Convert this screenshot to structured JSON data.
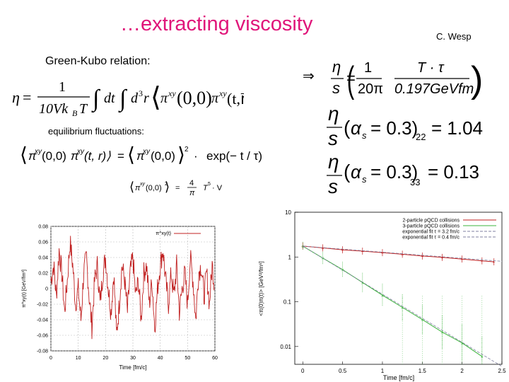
{
  "slide": {
    "title": "…extracting viscosity",
    "author": "C. Wesp",
    "green_kubo_label": "Green-Kubo relation:",
    "equilibrium_label": "equilibrium fluctuations:",
    "colors": {
      "title": "#e0157a",
      "red_series": "#c02020",
      "green_series": "#3cb43c"
    }
  },
  "chart_data": [
    {
      "type": "line",
      "title": "",
      "xlabel": "Time [fm/c]",
      "ylabel": "π^xy(t) [GeV/fm³]",
      "xlim": [
        0,
        60
      ],
      "ylim": [
        -0.08,
        0.08
      ],
      "x_ticks": [
        "0",
        "10",
        "20",
        "30",
        "40",
        "50",
        "60"
      ],
      "y_ticks": [
        "-0.08",
        "-0.06",
        "-0.04",
        "-0.02",
        "0",
        "0.02",
        "0.04",
        "0.06",
        "0.08"
      ],
      "legend": "top-right",
      "series": [
        {
          "name": "π^xy(t)",
          "color": "#c02020",
          "x": [
            0,
            1,
            2,
            3,
            4,
            5,
            6,
            7,
            8,
            9,
            10,
            11,
            12,
            13,
            14,
            15,
            16,
            17,
            18,
            19,
            20,
            21,
            22,
            23,
            24,
            25,
            26,
            27,
            28,
            29,
            30,
            31,
            32,
            33,
            34,
            35,
            36,
            37,
            38,
            39,
            40,
            41,
            42,
            43,
            44,
            45,
            46,
            47,
            48,
            49,
            50,
            51,
            52,
            53,
            54,
            55,
            56,
            57,
            58,
            59,
            60
          ],
          "y": [
            0.01,
            0.03,
            -0.01,
            0.05,
            0.02,
            -0.03,
            0.01,
            0.06,
            0.03,
            -0.02,
            0.0,
            -0.04,
            0.02,
            0.04,
            -0.01,
            -0.05,
            0.01,
            0.03,
            -0.02,
            0.02,
            0.04,
            0.0,
            -0.03,
            0.02,
            -0.06,
            -0.02,
            0.03,
            0.01,
            -0.03,
            0.02,
            0.04,
            -0.01,
            0.01,
            -0.04,
            0.02,
            0.03,
            -0.02,
            0.01,
            -0.05,
            0.0,
            0.03,
            0.05,
            0.01,
            -0.02,
            0.02,
            -0.01,
            0.03,
            -0.03,
            0.0,
            0.02,
            -0.02,
            0.04,
            0.01,
            -0.04,
            0.02,
            0.03,
            -0.01,
            0.02,
            -0.02,
            0.03,
            0.0
          ]
        }
      ]
    },
    {
      "type": "line",
      "title": "",
      "xlabel": "Time [fm/c]",
      "ylabel": "<π(0)π(t)> [GeV²/fm⁶]",
      "xlim": [
        -0.1,
        2.5
      ],
      "ylim": [
        0.004,
        10
      ],
      "yscale": "log",
      "x_ticks": [
        "0",
        "0.5",
        "1",
        "1.5",
        "2",
        "2.5"
      ],
      "y_ticks": [
        "0.01",
        "0.1",
        "1",
        "10"
      ],
      "legend": "top-right",
      "series": [
        {
          "name": "2-particle pQCD collisions",
          "color": "#c02020",
          "x": [
            0,
            0.25,
            0.5,
            0.75,
            1,
            1.25,
            1.5,
            1.75,
            2,
            2.25,
            2.4
          ],
          "y": [
            1.75,
            1.6,
            1.45,
            1.35,
            1.25,
            1.15,
            1.05,
            0.98,
            0.9,
            0.82,
            0.78
          ]
        },
        {
          "name": "3-particle pQCD collisions",
          "color": "#3cb43c",
          "x": [
            0,
            0.25,
            0.5,
            0.75,
            1,
            1.25,
            1.5,
            1.75,
            2,
            2.25
          ],
          "y": [
            1.75,
            0.95,
            0.52,
            0.27,
            0.14,
            0.075,
            0.04,
            0.021,
            0.012,
            0.006
          ]
        },
        {
          "name": "exponential fit τ = 3.2 fm/c",
          "color": "#8080a0",
          "x": [
            0,
            2.5
          ],
          "y": [
            1.75,
            0.8
          ]
        },
        {
          "name": "exponential fit τ = 0.4 fm/c",
          "color": "#8080a0",
          "x": [
            0,
            2.5
          ],
          "y": [
            1.75,
            0.0036
          ]
        }
      ]
    }
  ]
}
